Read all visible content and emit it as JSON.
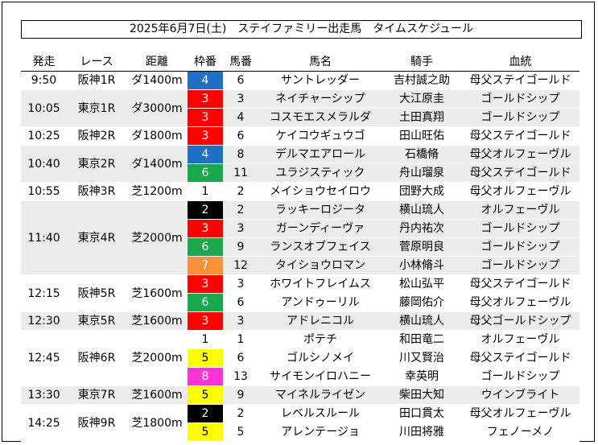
{
  "title": "2025年6月7日(土)　ステイファミリー出走馬　タイムスケジュール",
  "headers": {
    "time": "発走",
    "race": "レース",
    "distance": "距離",
    "waku": "枠番",
    "umaban": "馬番",
    "horse": "馬名",
    "jockey": "騎手",
    "pedigree": "血統"
  },
  "waku_colors": {
    "1": "#ffffff",
    "2": "#000000",
    "3": "#ff0000",
    "4": "#1f6fc5",
    "5": "#ffff00",
    "6": "#1aa84e",
    "7": "#f7923a",
    "8": "#ff33d6"
  },
  "races": [
    {
      "time": "9:50",
      "race": "阪神1R",
      "distance": "ダ1400m",
      "stripe": false,
      "entries": [
        {
          "waku": "4",
          "umaban": "6",
          "horse": "サントレッダー",
          "jockey": "吉村誠之助",
          "pedigree": "母父ステイゴールド"
        }
      ]
    },
    {
      "time": "10:05",
      "race": "東京1R",
      "distance": "ダ3000m",
      "stripe": true,
      "entries": [
        {
          "waku": "3",
          "umaban": "3",
          "horse": "ネイチャーシップ",
          "jockey": "大江原圭",
          "pedigree": "ゴールドシップ"
        },
        {
          "waku": "3",
          "umaban": "4",
          "horse": "コスモエスメラルダ",
          "jockey": "土田真翔",
          "pedigree": "ゴールドシップ"
        }
      ]
    },
    {
      "time": "10:25",
      "race": "阪神2R",
      "distance": "ダ1800m",
      "stripe": false,
      "entries": [
        {
          "waku": "3",
          "umaban": "6",
          "horse": "ケイコウギュウゴ",
          "jockey": "田山旺佑",
          "pedigree": "母父ステイゴールド"
        }
      ]
    },
    {
      "time": "10:40",
      "race": "東京2R",
      "distance": "ダ1400m",
      "stripe": true,
      "entries": [
        {
          "waku": "4",
          "umaban": "8",
          "horse": "デルマエアロール",
          "jockey": "石橋脩",
          "pedigree": "母父オルフェーヴル"
        },
        {
          "waku": "6",
          "umaban": "11",
          "horse": "ユラジスティック",
          "jockey": "舟山瑠泉",
          "pedigree": "母父ステイゴールド"
        }
      ]
    },
    {
      "time": "10:55",
      "race": "阪神3R",
      "distance": "芝1200m",
      "stripe": false,
      "entries": [
        {
          "waku": "1",
          "umaban": "2",
          "horse": "メイショウセイロウ",
          "jockey": "団野大成",
          "pedigree": "母父オルフェーヴル"
        }
      ]
    },
    {
      "time": "11:40",
      "race": "東京4R",
      "distance": "芝2000m",
      "stripe": true,
      "entries": [
        {
          "waku": "2",
          "umaban": "2",
          "horse": "ラッキーロジータ",
          "jockey": "横山琉人",
          "pedigree": "オルフェーヴル"
        },
        {
          "waku": "3",
          "umaban": "3",
          "horse": "ガーンディーヴァ",
          "jockey": "丹内祐次",
          "pedigree": "ゴールドシップ"
        },
        {
          "waku": "6",
          "umaban": "9",
          "horse": "ランスオブフェイス",
          "jockey": "菅原明良",
          "pedigree": "ゴールドシップ"
        },
        {
          "waku": "7",
          "umaban": "12",
          "horse": "タイショウロマン",
          "jockey": "小林脩斗",
          "pedigree": "ゴールドシップ"
        }
      ]
    },
    {
      "time": "12:15",
      "race": "阪神5R",
      "distance": "芝1600m",
      "stripe": false,
      "entries": [
        {
          "waku": "3",
          "umaban": "3",
          "horse": "ホワイトフレイムス",
          "jockey": "松山弘平",
          "pedigree": "母父ステイゴールド"
        },
        {
          "waku": "6",
          "umaban": "6",
          "horse": "アンドゥーリル",
          "jockey": "藤岡佑介",
          "pedigree": "母父オルフェーヴル"
        }
      ]
    },
    {
      "time": "12:30",
      "race": "東京5R",
      "distance": "芝1600m",
      "stripe": true,
      "entries": [
        {
          "waku": "3",
          "umaban": "3",
          "horse": "アドレニコル",
          "jockey": "横山琉人",
          "pedigree": "母父ゴールドシップ"
        }
      ]
    },
    {
      "time": "12:45",
      "race": "阪神6R",
      "distance": "芝2000m",
      "stripe": false,
      "entries": [
        {
          "waku": "1",
          "umaban": "1",
          "horse": "ポテチ",
          "jockey": "和田竜二",
          "pedigree": "オルフェーヴル"
        },
        {
          "waku": "5",
          "umaban": "6",
          "horse": "ゴルシノメイ",
          "jockey": "川又賢治",
          "pedigree": "母父ステイゴールド"
        },
        {
          "waku": "8",
          "umaban": "13",
          "horse": "サイモンイロハニー",
          "jockey": "幸英明",
          "pedigree": "ゴールドシップ"
        }
      ]
    },
    {
      "time": "13:30",
      "race": "東京7R",
      "distance": "芝1600m",
      "stripe": true,
      "entries": [
        {
          "waku": "5",
          "umaban": "9",
          "horse": "マイネルライゼン",
          "jockey": "柴田大知",
          "pedigree": "ウインブライト"
        }
      ]
    },
    {
      "time": "14:25",
      "race": "阪神9R",
      "distance": "芝1800m",
      "stripe": false,
      "entries": [
        {
          "waku": "2",
          "umaban": "2",
          "horse": "レベルスルール",
          "jockey": "田口貫太",
          "pedigree": "母父オルフェーヴル"
        },
        {
          "waku": "5",
          "umaban": "5",
          "horse": "アレンテージョ",
          "jockey": "川田将雅",
          "pedigree": "フェノーメノ"
        }
      ]
    }
  ]
}
